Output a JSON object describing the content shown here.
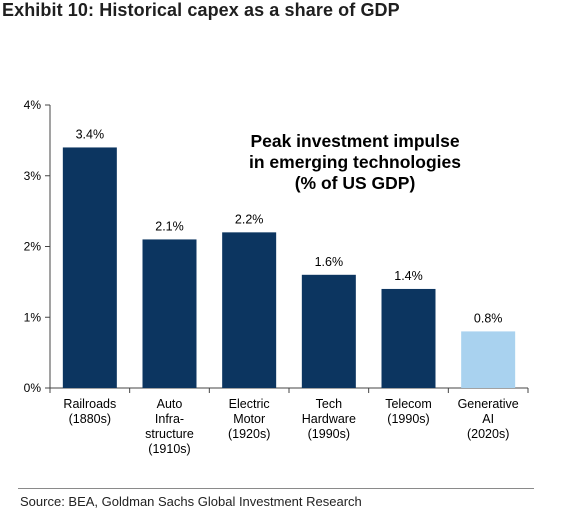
{
  "exhibit": {
    "title": "Exhibit 10: Historical capex as a share of GDP",
    "source": "Source: BEA, Goldman Sachs Global Investment Research"
  },
  "chart_data": {
    "type": "bar",
    "annotation": [
      "Peak investment impulse",
      "in emerging technologies",
      "(% of US GDP)"
    ],
    "categories": [
      [
        "Railroads",
        "(1880s)"
      ],
      [
        "Auto",
        "Infra-",
        "structure",
        "(1910s)"
      ],
      [
        "Electric",
        "Motor",
        "(1920s)"
      ],
      [
        "Tech",
        "Hardware",
        "(1990s)"
      ],
      [
        "Telecom",
        "(1990s)"
      ],
      [
        "Generative",
        "AI",
        "(2020s)"
      ]
    ],
    "values": [
      3.4,
      2.1,
      2.2,
      1.6,
      1.4,
      0.8
    ],
    "value_labels": [
      "3.4%",
      "2.1%",
      "2.2%",
      "1.6%",
      "1.4%",
      "0.8%"
    ],
    "colors": [
      "#0c3560",
      "#0c3560",
      "#0c3560",
      "#0c3560",
      "#0c3560",
      "#a9d2ef"
    ],
    "ylim": [
      0,
      4
    ],
    "yticks": [
      0,
      1,
      2,
      3,
      4
    ],
    "ytick_labels": [
      "0%",
      "1%",
      "2%",
      "3%",
      "4%"
    ],
    "grid": false,
    "legend": "none"
  }
}
